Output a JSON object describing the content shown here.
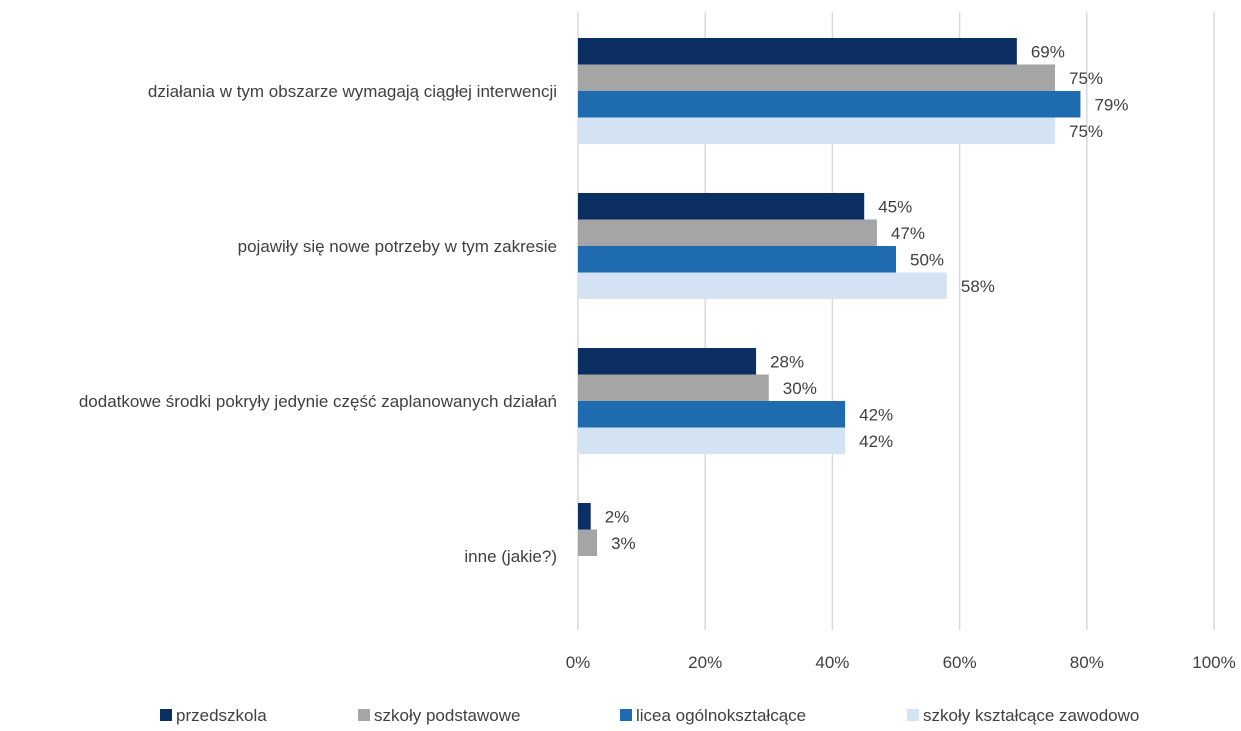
{
  "chart_data": {
    "type": "bar",
    "orientation": "horizontal",
    "title": "",
    "xlabel": "",
    "ylabel": "",
    "xlim": [
      0,
      100
    ],
    "x_ticks": [
      "0%",
      "20%",
      "40%",
      "60%",
      "80%",
      "100%"
    ],
    "x_tick_values": [
      0,
      20,
      40,
      60,
      80,
      100
    ],
    "grid": "vertical",
    "legend_position": "bottom",
    "categories": [
      "działania w tym obszarze wymagają ciągłej interwencji",
      "pojawiły się nowe potrzeby w tym zakresie",
      "dodatkowe środki pokryły jedynie część zaplanowanych działań",
      "inne (jakie?)"
    ],
    "series": [
      {
        "name": "przedszkola",
        "color": "#0b2e63",
        "values": [
          69,
          45,
          28,
          2
        ],
        "labels": [
          "69%",
          "45%",
          "28%",
          "2%"
        ]
      },
      {
        "name": "szkoły podstawowe",
        "color": "#a5a5a5",
        "values": [
          75,
          47,
          30,
          3
        ],
        "labels": [
          "75%",
          "47%",
          "30%",
          "3%"
        ]
      },
      {
        "name": "licea ogólnokształcące",
        "color": "#1f6bb0",
        "values": [
          79,
          50,
          42,
          null
        ],
        "labels": [
          "79%",
          "50%",
          "42%",
          ""
        ]
      },
      {
        "name": "szkoły kształcące zawodowo",
        "color": "#d4e3f4",
        "values": [
          75,
          58,
          42,
          null
        ],
        "labels": [
          "75%",
          "58%",
          "42%",
          ""
        ]
      }
    ]
  }
}
